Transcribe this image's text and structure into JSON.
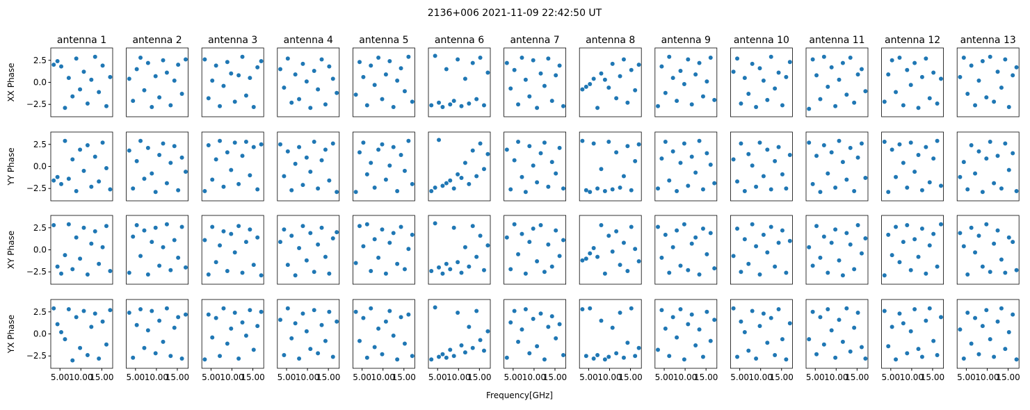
{
  "chart_data": {
    "type": "scatter",
    "title": "2136+006 2021-11-09 22:42:50 UT",
    "xlabel": "Frequency[GHz]",
    "color": "#1f77b4",
    "x": [
      3.5,
      4.4,
      5.3,
      6.2,
      7.1,
      8.0,
      8.9,
      9.8,
      10.7,
      11.6,
      12.5,
      13.4,
      14.3,
      15.2,
      16.1,
      17.0
    ],
    "xlim": [
      2.8,
      17.6
    ],
    "ylim": [
      -3.9,
      3.9
    ],
    "xticks": [
      {
        "value": 5,
        "label": "5.00"
      },
      {
        "value": 10,
        "label": "10.00"
      },
      {
        "value": 15,
        "label": "15.00"
      }
    ],
    "yticks": [
      {
        "value": -2.5,
        "label": "−2.5"
      },
      {
        "value": 0,
        "label": "0.0"
      },
      2.5
    ],
    "columns": [
      "antenna 1",
      "antenna 2",
      "antenna 3",
      "antenna 4",
      "antenna 5",
      "antenna 6",
      "antenna 7",
      "antenna 8",
      "antenna 9",
      "antenna 10",
      "antenna 11",
      "antenna 12",
      "antenna 13"
    ],
    "rows": [
      {
        "label": "XX Phase",
        "series": [
          [
            2.0,
            2.4,
            1.8,
            -2.9,
            0.5,
            -1.6,
            2.7,
            -0.8,
            1.2,
            -2.4,
            0.3,
            2.9,
            -1.1,
            1.9,
            -2.7,
            0.6
          ],
          [
            0.4,
            -2.1,
            1.5,
            2.8,
            -0.9,
            2.2,
            -2.8,
            0.7,
            -1.7,
            2.5,
            1.1,
            -2.6,
            0.2,
            2.0,
            -1.3,
            2.6
          ],
          [
            2.6,
            -1.8,
            0.2,
            1.9,
            -2.7,
            -0.4,
            2.3,
            1.0,
            -2.2,
            0.8,
            2.9,
            -1.5,
            0.5,
            -2.8,
            1.7,
            2.4
          ],
          [
            1.5,
            -0.6,
            2.7,
            -2.3,
            0.9,
            -1.9,
            2.1,
            0.1,
            -2.9,
            1.3,
            -0.8,
            2.6,
            -2.5,
            1.8,
            0.4,
            -1.2
          ],
          [
            -1.4,
            2.3,
            0.6,
            -2.6,
            1.9,
            -0.3,
            2.8,
            -1.9,
            0.9,
            2.4,
            -2.8,
            0.2,
            1.6,
            -1.0,
            2.9,
            -2.2
          ],
          [
            -2.6,
            3.0,
            -2.3,
            -2.8,
            1.5,
            -2.5,
            -2.1,
            2.6,
            -2.7,
            0.4,
            -2.4,
            2.2,
            -1.9,
            2.8,
            -2.6,
            1.1
          ],
          [
            2.2,
            -0.7,
            1.4,
            -2.5,
            2.8,
            0.3,
            -1.6,
            2.5,
            -2.9,
            1.0,
            -0.4,
            2.7,
            -2.1,
            0.8,
            1.9,
            -2.7
          ],
          [
            -0.8,
            -0.5,
            -0.2,
            0.4,
            -2.9,
            1.0,
            0.3,
            -0.6,
            2.1,
            -1.8,
            0.7,
            2.6,
            -2.3,
            1.4,
            -0.9,
            2.0
          ],
          [
            -2.7,
            1.8,
            -1.2,
            2.9,
            0.5,
            -2.1,
            1.3,
            -0.2,
            2.6,
            -2.5,
            0.9,
            2.2,
            -1.6,
            0.1,
            2.8,
            -2.0
          ],
          [
            1.2,
            2.7,
            -2.4,
            0.5,
            -1.3,
            2.1,
            -2.8,
            1.6,
            0.2,
            -2.0,
            2.9,
            -0.7,
            1.1,
            -2.6,
            0.6,
            2.3
          ],
          [
            -3.0,
            2.6,
            0.8,
            -1.9,
            2.9,
            -0.5,
            1.7,
            -2.7,
            0.3,
            2.2,
            -1.4,
            2.8,
            -2.3,
            0.9,
            1.5,
            -1.0
          ],
          [
            -2.2,
            0.9,
            2.5,
            -1.1,
            2.8,
            -2.6,
            1.4,
            -0.3,
            2.2,
            -2.9,
            0.6,
            2.7,
            -1.8,
            1.1,
            -2.4,
            0.4
          ],
          [
            0.6,
            2.8,
            -1.3,
            1.9,
            -2.6,
            0.2,
            2.4,
            -1.7,
            2.9,
            -2.2,
            1.2,
            -0.6,
            2.6,
            -2.8,
            0.8,
            1.7
          ]
        ]
      },
      {
        "label": "YY Phase",
        "series": [
          [
            -1.6,
            -1.2,
            -2.0,
            2.9,
            -1.4,
            0.8,
            -2.8,
            1.9,
            -0.5,
            2.4,
            -2.3,
            1.1,
            -1.7,
            2.7,
            -0.2,
            -2.6
          ],
          [
            1.8,
            -2.5,
            0.6,
            2.9,
            -1.4,
            2.1,
            -0.8,
            -2.9,
            1.3,
            2.6,
            -1.9,
            0.4,
            2.3,
            -2.7,
            1.0,
            -0.6
          ],
          [
            -2.8,
            2.4,
            -1.5,
            0.8,
            2.9,
            -2.3,
            1.6,
            -0.4,
            2.7,
            -2.0,
            1.2,
            2.8,
            -1.0,
            2.2,
            -2.6,
            2.5
          ],
          [
            2.5,
            -1.1,
            1.7,
            -2.7,
            0.3,
            2.2,
            -2.1,
            1.0,
            -0.6,
            2.8,
            -2.5,
            0.7,
            1.9,
            -1.6,
            2.6,
            -2.9
          ],
          [
            -2.9,
            1.6,
            2.7,
            -0.9,
            0.4,
            -2.4,
            1.9,
            2.5,
            -1.5,
            0.1,
            2.2,
            -2.8,
            1.3,
            -0.5,
            2.9,
            -2.0
          ],
          [
            -2.8,
            -2.4,
            3.0,
            -2.2,
            -1.9,
            -1.6,
            -2.5,
            -0.9,
            -1.3,
            0.4,
            -2.0,
            1.8,
            -1.1,
            2.6,
            -0.3,
            1.4
          ],
          [
            1.9,
            -2.6,
            0.7,
            2.8,
            -1.2,
            -2.9,
            2.3,
            0.1,
            -1.8,
            1.5,
            2.7,
            -2.3,
            0.5,
            -0.8,
            2.1,
            -2.5
          ],
          [
            2.9,
            -2.7,
            -2.9,
            2.6,
            -2.5,
            -0.3,
            -2.8,
            2.8,
            -2.6,
            1.6,
            -2.4,
            -1.1,
            2.3,
            -2.7,
            0.6,
            2.5
          ],
          [
            -2.5,
            0.9,
            2.8,
            -1.6,
            1.7,
            -2.8,
            0.4,
            2.6,
            -2.2,
            1.1,
            -0.7,
            2.9,
            -2.6,
            1.5,
            0.2,
            -1.9
          ],
          [
            0.8,
            -1.7,
            2.6,
            -2.8,
            1.4,
            0.1,
            -2.3,
            2.7,
            -1.1,
            1.9,
            -2.6,
            0.6,
            2.2,
            -0.9,
            -2.5,
            1.3
          ],
          [
            2.7,
            -2.0,
            1.2,
            -2.9,
            2.4,
            -0.8,
            1.6,
            -2.4,
            2.9,
            0.5,
            -1.5,
            2.1,
            -2.8,
            1.0,
            2.6,
            -1.3
          ],
          [
            2.8,
            -2.9,
            1.9,
            -1.2,
            2.5,
            0.4,
            -2.4,
            2.7,
            -0.6,
            1.3,
            -2.7,
            2.2,
            -1.8,
            0.9,
            2.9,
            -2.2
          ],
          [
            -1.2,
            0.5,
            -2.6,
            2.4,
            -0.8,
            1.7,
            -2.9,
            0.9,
            2.8,
            -1.9,
            1.2,
            -2.5,
            2.6,
            -0.4,
            1.5,
            -2.8
          ]
        ]
      },
      {
        "label": "XY Phase",
        "series": [
          [
            2.8,
            -1.9,
            -2.7,
            -0.6,
            2.9,
            -2.2,
            1.4,
            -1.0,
            2.5,
            -2.8,
            0.7,
            2.1,
            -1.6,
            0.3,
            2.7,
            -2.4
          ],
          [
            -2.6,
            1.5,
            2.8,
            -0.7,
            2.2,
            -2.8,
            0.9,
            2.5,
            -1.8,
            0.3,
            2.9,
            -2.3,
            1.1,
            -0.9,
            2.6,
            -2.0
          ],
          [
            1.1,
            -2.8,
            2.6,
            -1.4,
            0.5,
            2.1,
            -2.4,
            1.8,
            -0.3,
            2.7,
            -2.6,
            0.9,
            2.3,
            -1.7,
            1.4,
            -2.9
          ],
          [
            0.9,
            2.3,
            -1.7,
            1.6,
            -2.9,
            0.2,
            2.7,
            -1.2,
            1.9,
            -2.5,
            0.6,
            2.5,
            -0.8,
            -2.7,
            1.3,
            2.0
          ],
          [
            -1.5,
            2.7,
            0.4,
            2.9,
            -2.4,
            1.2,
            -0.9,
            2.3,
            -2.7,
            0.8,
            1.9,
            -1.6,
            2.6,
            -2.2,
            0.1,
            1.7
          ],
          [
            -2.4,
            3.0,
            -2.0,
            -2.7,
            -1.6,
            -2.2,
            2.5,
            -1.4,
            -2.6,
            0.3,
            -1.9,
            2.7,
            -0.8,
            1.6,
            -2.3,
            0.5
          ],
          [
            1.4,
            -2.2,
            2.9,
            -0.5,
            1.8,
            -2.7,
            0.9,
            2.4,
            -1.3,
            2.8,
            -2.5,
            0.6,
            -1.9,
            2.2,
            -0.7,
            1.1
          ],
          [
            -1.2,
            -1.0,
            -0.4,
            0.2,
            -0.8,
            2.8,
            -2.7,
            1.6,
            -0.2,
            2.1,
            -1.7,
            0.8,
            -2.4,
            2.6,
            0.1,
            -1.3
          ],
          [
            2.6,
            -0.9,
            1.7,
            -2.6,
            0.3,
            2.2,
            -1.8,
            2.9,
            -2.3,
            0.7,
            1.4,
            -2.8,
            2.4,
            -0.5,
            1.9,
            -2.1
          ],
          [
            -0.7,
            2.4,
            -2.5,
            1.2,
            -1.6,
            2.9,
            0.4,
            -2.8,
            1.7,
            -0.3,
            2.6,
            -1.9,
            0.8,
            2.2,
            -2.6,
            1.0
          ],
          [
            0.3,
            -1.8,
            2.7,
            -0.9,
            1.5,
            -2.6,
            0.8,
            2.3,
            -1.2,
            -2.9,
            1.9,
            0.6,
            -2.2,
            2.8,
            -0.4,
            1.3
          ],
          [
            -2.9,
            1.7,
            -0.6,
            2.6,
            -1.4,
            0.9,
            2.8,
            -2.3,
            1.2,
            -0.8,
            2.4,
            -2.7,
            0.5,
            1.8,
            -1.9,
            2.9
          ],
          [
            1.9,
            0.4,
            -2.8,
            2.5,
            -0.3,
            1.6,
            -1.9,
            2.9,
            -2.5,
            0.7,
            2.2,
            -1.1,
            -2.6,
            1.4,
            0.9,
            -2.3
          ]
        ]
      },
      {
        "label": "YX Phase",
        "series": [
          [
            2.9,
            1.1,
            0.2,
            -0.6,
            2.8,
            -3.0,
            1.9,
            -1.6,
            2.6,
            -2.4,
            0.8,
            2.3,
            -2.8,
            1.4,
            -1.2,
            2.7
          ],
          [
            2.4,
            -2.7,
            1.0,
            2.8,
            -1.6,
            0.4,
            2.6,
            -2.2,
            1.5,
            -0.9,
            2.9,
            -2.5,
            0.7,
            1.9,
            -2.8,
            2.2
          ],
          [
            -2.9,
            2.2,
            -0.4,
            1.8,
            -2.5,
            2.9,
            -1.1,
            0.6,
            2.4,
            -2.8,
            1.3,
            -0.2,
            2.7,
            -1.8,
            0.9,
            2.5
          ],
          [
            1.6,
            -2.4,
            2.9,
            -0.5,
            1.2,
            -2.8,
            2.3,
            0.3,
            -1.7,
            2.7,
            -2.2,
            1.0,
            -0.8,
            2.5,
            -2.6,
            1.4
          ],
          [
            2.5,
            -0.8,
            1.8,
            -2.7,
            2.9,
            -1.5,
            0.6,
            -2.3,
            1.4,
            2.6,
            -0.2,
            -2.9,
            1.9,
            -1.1,
            2.2,
            -2.5
          ],
          [
            -2.9,
            3.0,
            -2.6,
            -2.3,
            -2.7,
            -1.8,
            -2.5,
            2.4,
            -1.3,
            -2.1,
            0.8,
            -1.6,
            2.6,
            -0.7,
            -1.9,
            0.3
          ],
          [
            -2.7,
            1.3,
            2.6,
            -0.9,
            0.5,
            2.8,
            -2.2,
            1.7,
            -1.4,
            2.3,
            -2.9,
            0.8,
            2.0,
            -0.5,
            1.1,
            -2.4
          ],
          [
            2.8,
            -2.5,
            2.9,
            -2.8,
            -2.4,
            1.5,
            -2.9,
            -2.6,
            0.7,
            -2.2,
            2.4,
            -2.7,
            -1.0,
            2.9,
            -2.5,
            -1.6
          ],
          [
            -1.8,
            2.7,
            0.6,
            -2.5,
            1.9,
            -0.4,
            2.8,
            -2.9,
            1.1,
            2.2,
            -1.3,
            0.5,
            -2.6,
            2.5,
            -0.8,
            1.6
          ],
          [
            2.9,
            -2.6,
            1.4,
            0.2,
            -1.9,
            2.6,
            -2.8,
            0.9,
            2.3,
            -1.0,
            1.8,
            -2.4,
            2.8,
            -0.6,
            -2.9,
            1.2
          ],
          [
            -0.6,
            2.5,
            -2.3,
            1.9,
            -1.2,
            2.8,
            0.4,
            -2.7,
            1.6,
            -0.9,
            2.9,
            -2.0,
            0.7,
            2.4,
            -1.5,
            -2.8
          ],
          [
            2.6,
            -1.4,
            0.8,
            -2.9,
            2.3,
            1.2,
            -2.2,
            0.3,
            2.8,
            -1.7,
            -2.6,
            1.5,
            2.9,
            -0.8,
            -2.4,
            1.9
          ],
          [
            0.5,
            -2.8,
            2.4,
            -1.1,
            1.8,
            -2.3,
            0.9,
            2.7,
            -0.6,
            -2.6,
            1.4,
            2.9,
            -1.7,
            0.2,
            2.2,
            -2.9
          ]
        ]
      }
    ]
  }
}
